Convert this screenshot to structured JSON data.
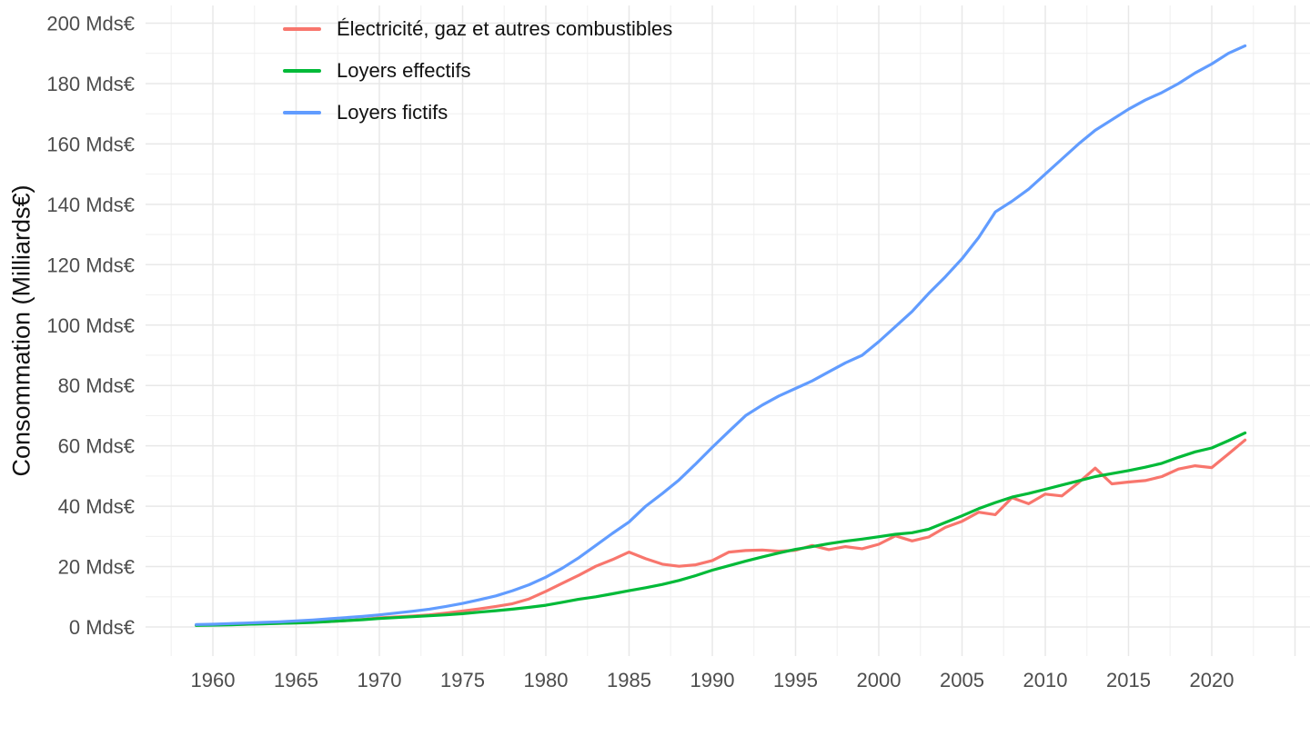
{
  "chart_data": {
    "type": "line",
    "title": "",
    "xlabel": "",
    "ylabel": "Consommation (Milliards€)",
    "legend_position": "top-left-inside",
    "grid": true,
    "background_color": "#FFFFFF",
    "grid_major_color": "#E8E8E8",
    "grid_minor_color": "#F1F1F1",
    "axis_text_color": "#4D4D4D",
    "axis_title_color": "#111111",
    "ylim": [
      0,
      200
    ],
    "xlim": [
      1957.5,
      2025
    ],
    "y_tick_values": [
      0,
      20,
      40,
      60,
      80,
      100,
      120,
      140,
      160,
      180,
      200
    ],
    "y_tick_labels": [
      "0 Mds€",
      "20 Mds€",
      "40 Mds€",
      "60 Mds€",
      "80 Mds€",
      "100 Mds€",
      "120 Mds€",
      "140 Mds€",
      "160 Mds€",
      "180 Mds€",
      "200 Mds€"
    ],
    "x_tick_values": [
      1960,
      1965,
      1970,
      1975,
      1980,
      1985,
      1990,
      1995,
      2000,
      2005,
      2010,
      2015,
      2020
    ],
    "x_tick_labels": [
      "1960",
      "1965",
      "1970",
      "1975",
      "1980",
      "1985",
      "1990",
      "1995",
      "2000",
      "2005",
      "2010",
      "2015",
      "2020"
    ],
    "x": [
      1959,
      1960,
      1961,
      1962,
      1963,
      1964,
      1965,
      1966,
      1967,
      1968,
      1969,
      1970,
      1971,
      1972,
      1973,
      1974,
      1975,
      1976,
      1977,
      1978,
      1979,
      1980,
      1981,
      1982,
      1983,
      1984,
      1985,
      1986,
      1987,
      1988,
      1989,
      1990,
      1991,
      1992,
      1993,
      1994,
      1995,
      1996,
      1997,
      1998,
      1999,
      2000,
      2001,
      2002,
      2003,
      2004,
      2005,
      2006,
      2007,
      2008,
      2009,
      2010,
      2011,
      2012,
      2013,
      2014,
      2015,
      2016,
      2017,
      2018,
      2019,
      2020,
      2021,
      2022
    ],
    "series": [
      {
        "name": "Électricité, gaz et autres combustibles",
        "color": "#F8766D",
        "values": [
          0.6,
          0.7,
          0.8,
          0.9,
          1.1,
          1.2,
          1.4,
          1.6,
          1.8,
          2.1,
          2.5,
          3.0,
          3.3,
          3.6,
          4.0,
          4.6,
          5.3,
          6.0,
          6.8,
          7.7,
          9.3,
          11.8,
          14.5,
          17.2,
          20.1,
          22.3,
          24.8,
          22.6,
          20.8,
          20.1,
          20.6,
          22.0,
          24.8,
          25.3,
          25.5,
          25.1,
          25.4,
          27.0,
          25.6,
          26.6,
          25.9,
          27.4,
          30.2,
          28.5,
          29.8,
          33.0,
          35.0,
          38.0,
          37.2,
          42.8,
          40.8,
          44.0,
          43.4,
          47.8,
          52.6,
          47.4,
          48.0,
          48.5,
          49.8,
          52.3,
          53.4,
          52.8,
          57.3,
          61.9
        ]
      },
      {
        "name": "Loyers effectifs",
        "color": "#00BA38",
        "values": [
          0.5,
          0.6,
          0.7,
          0.9,
          1.0,
          1.2,
          1.3,
          1.5,
          1.8,
          2.1,
          2.4,
          2.8,
          3.1,
          3.4,
          3.7,
          4.0,
          4.4,
          4.9,
          5.4,
          5.9,
          6.5,
          7.2,
          8.2,
          9.2,
          10.0,
          11.0,
          12.0,
          13.0,
          14.1,
          15.4,
          17.0,
          18.8,
          20.3,
          21.8,
          23.2,
          24.5,
          25.7,
          26.6,
          27.6,
          28.4,
          29.1,
          29.9,
          30.7,
          31.2,
          32.4,
          34.6,
          36.8,
          39.2,
          41.2,
          43.0,
          44.2,
          45.6,
          47.0,
          48.4,
          49.8,
          50.8,
          51.8,
          52.9,
          54.2,
          56.2,
          58.0,
          59.3,
          61.7,
          64.3
        ]
      },
      {
        "name": "Loyers fictifs",
        "color": "#619CFF",
        "values": [
          0.8,
          0.9,
          1.1,
          1.3,
          1.5,
          1.7,
          2.0,
          2.3,
          2.7,
          3.1,
          3.5,
          4.0,
          4.6,
          5.2,
          5.9,
          6.8,
          7.8,
          9.0,
          10.3,
          12.0,
          14.0,
          16.5,
          19.5,
          23.0,
          27.0,
          31.0,
          34.8,
          40.0,
          44.2,
          48.7,
          54.0,
          59.5,
          64.8,
          70.0,
          73.5,
          76.5,
          79.0,
          81.5,
          84.5,
          87.5,
          90.0,
          94.5,
          99.5,
          104.5,
          110.5,
          116.0,
          122.0,
          129.0,
          137.5,
          141.0,
          145.0,
          150.0,
          155.0,
          160.0,
          164.5,
          168.0,
          171.5,
          174.5,
          177.0,
          180.0,
          183.5,
          186.5,
          190.0,
          192.5
        ]
      }
    ]
  }
}
